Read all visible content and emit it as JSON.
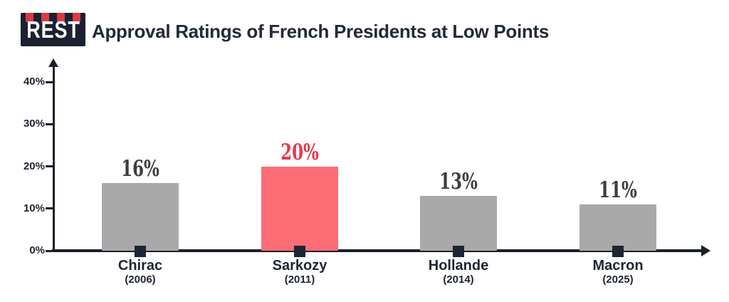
{
  "header": {
    "logo_text": "REST",
    "title": "Approval Ratings of French Presidents at Low Points"
  },
  "chart_data": {
    "type": "bar",
    "title": "Approval Ratings of French Presidents at Low Points",
    "categories": [
      "Chirac",
      "Sarkozy",
      "Hollande",
      "Macron"
    ],
    "category_sublabels": [
      "(2006)",
      "(2011)",
      "(2014)",
      "(2025)"
    ],
    "values": [
      16,
      20,
      13,
      11
    ],
    "value_labels": [
      "16%",
      "20%",
      "13%",
      "11%"
    ],
    "highlighted_index": 1,
    "y_ticks": [
      0,
      10,
      20,
      30,
      40
    ],
    "y_tick_labels": [
      "0%",
      "10%",
      "20%",
      "30%",
      "40%"
    ],
    "ylim": [
      0,
      40
    ],
    "xlabel": "",
    "ylabel": "",
    "grid": false,
    "legend": "none",
    "colors": {
      "bar_default": "#a9a9a9",
      "bar_highlight": "#fd6d76",
      "value_label_default": "#3d3d3d",
      "value_label_highlight": "#e63a4b",
      "axis": "#1a1f2d",
      "text": "#1d2433",
      "logo_background": "#1b2130",
      "logo_accent": "#d93a46",
      "background": "#ffffff"
    }
  }
}
